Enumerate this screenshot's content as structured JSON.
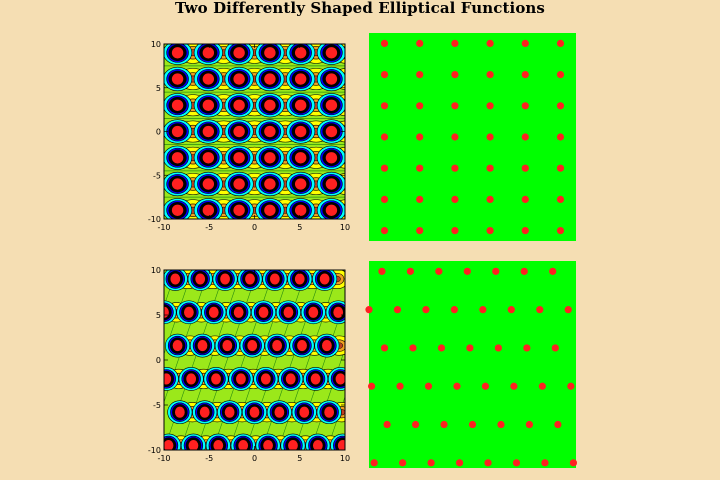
{
  "title": "Two Differently Shaped Elliptical Functions",
  "colors": {
    "background": "#f5deb3",
    "panel_green": "#00ff00",
    "dot_red": "#ff2020",
    "contour_yellow": "#ffff00",
    "contour_lime": "#9be81a",
    "contour_cyan": "#00ffff",
    "contour_blue": "#0000ff",
    "contour_orange": "#f0a020",
    "contour_black": "#000000"
  },
  "chart_data": [
    {
      "type": "contour",
      "name": "top-left contour plot (rectangular lattice)",
      "xlim": [
        -10,
        10
      ],
      "ylim": [
        -10,
        10
      ],
      "xticks": [
        -10,
        -5,
        0,
        5,
        10
      ],
      "yticks": [
        -10,
        -5,
        0,
        5,
        10
      ],
      "tick_labels": [
        "-10",
        "-5",
        "0",
        "5",
        "10"
      ],
      "lattice": {
        "x_spacing": 3.4,
        "y_spacing": 3.0,
        "x_offset": -8.5,
        "y_offset": 0,
        "shear": 0
      }
    },
    {
      "type": "scatter",
      "name": "top-right zero/pole map (rectangular lattice)",
      "xlim": [
        -10,
        10
      ],
      "ylim": [
        -10,
        10
      ],
      "lattice": {
        "x_spacing": 3.4,
        "y_spacing": 3.0,
        "x_offset": -8.5,
        "y_offset": 0,
        "shear": 0
      }
    },
    {
      "type": "contour",
      "name": "bottom-left contour plot (oblique lattice)",
      "xlim": [
        -10,
        10
      ],
      "ylim": [
        -10,
        10
      ],
      "xticks": [
        -10,
        -5,
        0,
        5,
        10
      ],
      "yticks": [
        -10,
        -5,
        0,
        5,
        10
      ],
      "tick_labels": [
        "-10",
        "-5",
        "0",
        "5",
        "10"
      ],
      "lattice": {
        "x_spacing": 2.75,
        "y_spacing": 3.7,
        "x_offset": -9.5,
        "y_offset": -9.5,
        "shear": 1.25
      }
    },
    {
      "type": "scatter",
      "name": "bottom-right zero/pole map (oblique lattice)",
      "xlim": [
        -10,
        10
      ],
      "ylim": [
        -10,
        10
      ],
      "lattice": {
        "x_spacing": 2.75,
        "y_spacing": 3.7,
        "x_offset": -9.5,
        "y_offset": -9.5,
        "shear": 1.25
      }
    }
  ]
}
